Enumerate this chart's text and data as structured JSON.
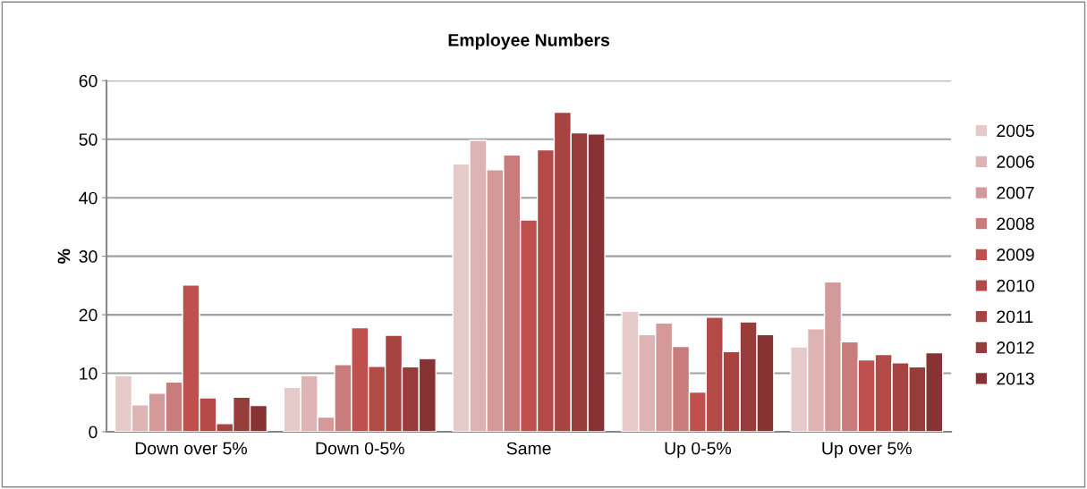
{
  "chart_data": {
    "type": "bar",
    "title": "Employee Numbers",
    "ylabel": "%",
    "categories": [
      "Down over 5%",
      "Down 0-5%",
      "Same",
      "Up 0-5%",
      "Up over 5%"
    ],
    "series": [
      {
        "name": "2005",
        "color": "#e6c9c9",
        "values": [
          9.6,
          7.6,
          45.8,
          20.6,
          14.5
        ]
      },
      {
        "name": "2006",
        "color": "#deb3b3",
        "values": [
          4.6,
          9.6,
          49.8,
          16.6,
          17.6
        ]
      },
      {
        "name": "2007",
        "color": "#d49a9a",
        "values": [
          6.6,
          2.5,
          44.8,
          18.6,
          25.6
        ]
      },
      {
        "name": "2008",
        "color": "#c97c7c",
        "values": [
          8.5,
          11.5,
          47.3,
          14.6,
          15.4
        ]
      },
      {
        "name": "2009",
        "color": "#c0504d",
        "values": [
          25.1,
          17.8,
          36.2,
          6.8,
          12.3
        ]
      },
      {
        "name": "2010",
        "color": "#b44a47",
        "values": [
          5.8,
          11.2,
          48.2,
          19.6,
          13.2
        ]
      },
      {
        "name": "2011",
        "color": "#a74442",
        "values": [
          1.4,
          16.5,
          54.6,
          13.7,
          11.8
        ]
      },
      {
        "name": "2012",
        "color": "#963c3b",
        "values": [
          5.9,
          11.1,
          51.1,
          18.8,
          11.1
        ]
      },
      {
        "name": "2013",
        "color": "#873334",
        "values": [
          4.5,
          12.5,
          50.9,
          16.6,
          13.5
        ]
      }
    ],
    "ylim": [
      0,
      60
    ],
    "yticks": [
      0,
      10,
      20,
      30,
      40,
      50,
      60
    ],
    "grid": "y",
    "legend": "right"
  }
}
